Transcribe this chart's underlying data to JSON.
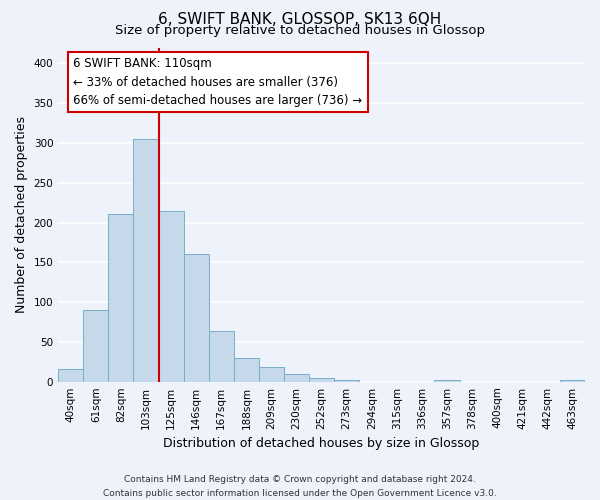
{
  "title": "6, SWIFT BANK, GLOSSOP, SK13 6QH",
  "subtitle": "Size of property relative to detached houses in Glossop",
  "xlabel": "Distribution of detached houses by size in Glossop",
  "ylabel": "Number of detached properties",
  "categories": [
    "40sqm",
    "61sqm",
    "82sqm",
    "103sqm",
    "125sqm",
    "146sqm",
    "167sqm",
    "188sqm",
    "209sqm",
    "230sqm",
    "252sqm",
    "273sqm",
    "294sqm",
    "315sqm",
    "336sqm",
    "357sqm",
    "378sqm",
    "400sqm",
    "421sqm",
    "442sqm",
    "463sqm"
  ],
  "values": [
    16,
    90,
    211,
    305,
    215,
    160,
    64,
    30,
    19,
    10,
    4,
    2,
    0,
    0,
    0,
    2,
    0,
    0,
    0,
    0,
    2
  ],
  "bar_color": "#c5d9ea",
  "bar_edge_color": "#7aafc8",
  "vline_x_index": 3,
  "vline_color": "#cc0000",
  "annotation_title": "6 SWIFT BANK: 110sqm",
  "annotation_line1": "← 33% of detached houses are smaller (376)",
  "annotation_line2": "66% of semi-detached houses are larger (736) →",
  "annotation_box_facecolor": "#ffffff",
  "annotation_box_edgecolor": "#cc0000",
  "ylim": [
    0,
    420
  ],
  "yticks": [
    0,
    50,
    100,
    150,
    200,
    250,
    300,
    350,
    400
  ],
  "footer_line1": "Contains HM Land Registry data © Crown copyright and database right 2024.",
  "footer_line2": "Contains public sector information licensed under the Open Government Licence v3.0.",
  "plot_bg_color": "#eef2fa",
  "fig_bg_color": "#eef2fa",
  "grid_color": "#ffffff",
  "grid_linewidth": 1.2,
  "title_fontsize": 11,
  "subtitle_fontsize": 9.5,
  "tick_fontsize": 7.5,
  "ylabel_fontsize": 9,
  "xlabel_fontsize": 9,
  "footer_fontsize": 6.5,
  "annotation_fontsize": 8.5
}
